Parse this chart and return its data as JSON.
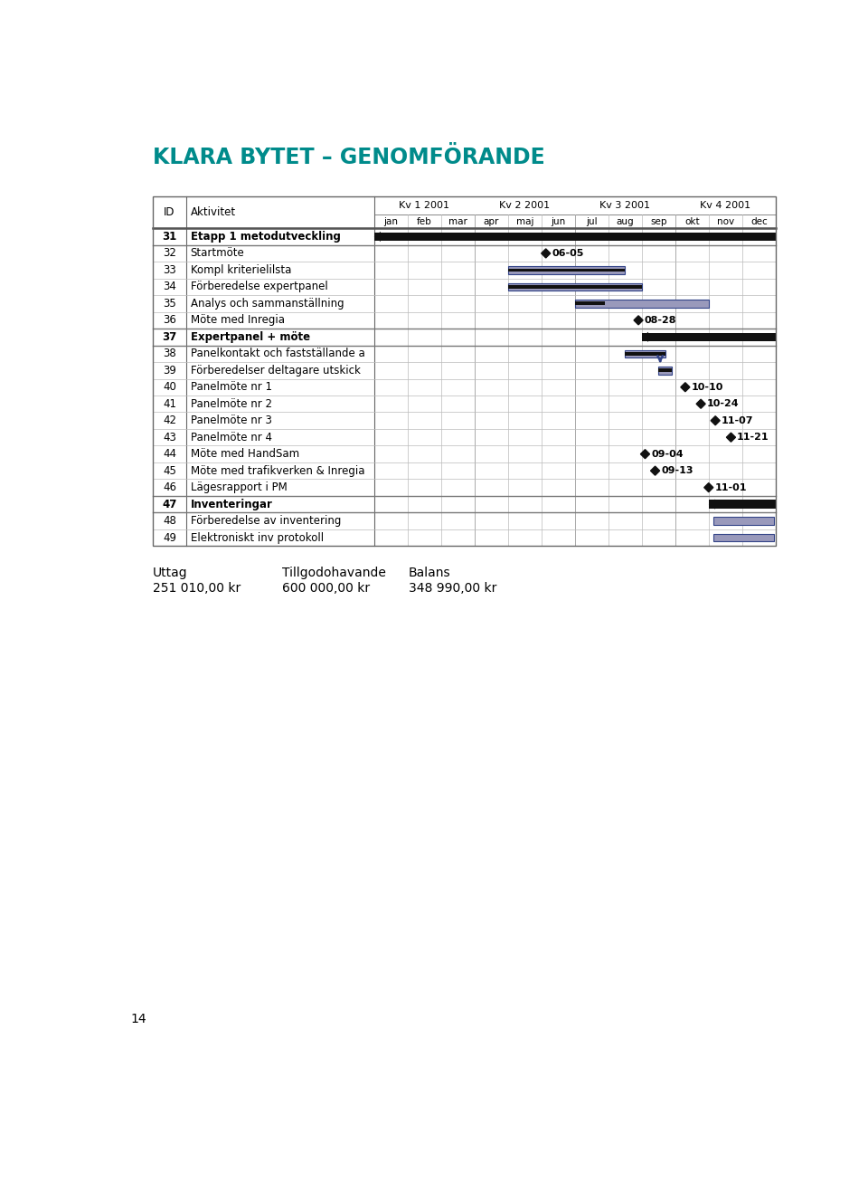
{
  "title": "KLARA BYTET – GENOMFÖRANDE",
  "title_color": "#008B8B",
  "page_number": "14",
  "quarters": [
    "Kv 1 2001",
    "Kv 2 2001",
    "Kv 3 2001",
    "Kv 4 2001"
  ],
  "months": [
    "jan",
    "feb",
    "mar",
    "apr",
    "maj",
    "jun",
    "jul",
    "aug",
    "sep",
    "okt",
    "nov",
    "dec"
  ],
  "rows": [
    {
      "id": 31,
      "label": "Etapp 1 metodutveckling",
      "bold": true
    },
    {
      "id": 32,
      "label": "Startmöte",
      "bold": false
    },
    {
      "id": 33,
      "label": "Kompl kriterielilsta",
      "bold": false
    },
    {
      "id": 34,
      "label": "Förberedelse expertpanel",
      "bold": false
    },
    {
      "id": 35,
      "label": "Analys och sammanställning",
      "bold": false
    },
    {
      "id": 36,
      "label": "Möte med Inregia",
      "bold": false
    },
    {
      "id": 37,
      "label": "Expertpanel + möte",
      "bold": true
    },
    {
      "id": 38,
      "label": "Panelkontakt och fastställande a",
      "bold": false
    },
    {
      "id": 39,
      "label": "Förberedelser deltagare utskick",
      "bold": false
    },
    {
      "id": 40,
      "label": "Panelmöte nr 1",
      "bold": false
    },
    {
      "id": 41,
      "label": "Panelmöte nr 2",
      "bold": false
    },
    {
      "id": 42,
      "label": "Panelmöte nr 3",
      "bold": false
    },
    {
      "id": 43,
      "label": "Panelmöte nr 4",
      "bold": false
    },
    {
      "id": 44,
      "label": "Möte med HandSam",
      "bold": false
    },
    {
      "id": 45,
      "label": "Möte med trafikverken & Inregia",
      "bold": false
    },
    {
      "id": 46,
      "label": "Lägesrapport i PM",
      "bold": false
    },
    {
      "id": 47,
      "label": "Inventeringar",
      "bold": true
    },
    {
      "id": 48,
      "label": "Förberedelse av inventering",
      "bold": false
    },
    {
      "id": 49,
      "label": "Elektroniskt inv protokoll",
      "bold": false
    }
  ],
  "footer_labels": [
    "Uttag",
    "Tillgodohavande",
    "Balans"
  ],
  "footer_values": [
    "251 010,00 kr",
    "600 000,00 kr",
    "348 990,00 kr"
  ],
  "bar_gray": "#9999bb",
  "bar_blue_edge": "#334488"
}
